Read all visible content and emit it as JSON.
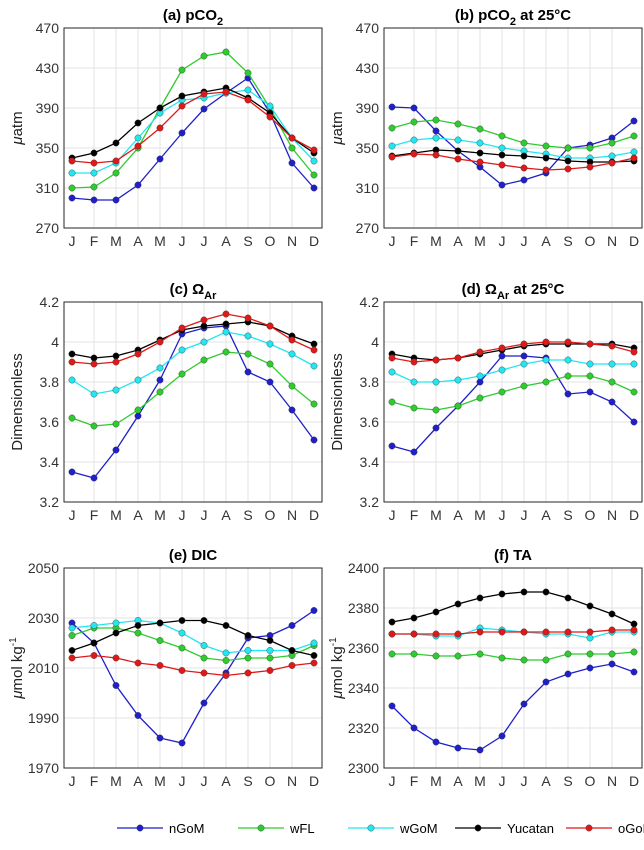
{
  "legend": {
    "items": [
      {
        "name": "nGoM",
        "color": "#1f1fcc"
      },
      {
        "name": "wFL",
        "color": "#2ecc2e"
      },
      {
        "name": "wGoM",
        "color": "#22e6f0"
      },
      {
        "name": "Yucatan",
        "color": "#000000"
      },
      {
        "name": "oGoM",
        "color": "#e01818"
      }
    ]
  },
  "chart_data": [
    {
      "type": "line",
      "title_main": "(a) pCO",
      "title_sub": "2",
      "title_after": "",
      "ylabel_prefix": "μ",
      "ylabel_main": "atm",
      "ylabel_sup": "",
      "categories": [
        "J",
        "F",
        "M",
        "A",
        "M",
        "J",
        "J",
        "A",
        "S",
        "O",
        "N",
        "D"
      ],
      "ylim": [
        270,
        470
      ],
      "yticks": [
        270,
        310,
        350,
        390,
        430,
        470
      ],
      "ytick_labels": [
        "270",
        "310",
        "350",
        "390",
        "430",
        "470"
      ],
      "grid": true,
      "series": [
        {
          "name": "nGoM",
          "values": [
            300,
            298,
            298,
            313,
            339,
            365,
            389,
            405,
            420,
            385,
            335,
            310
          ]
        },
        {
          "name": "wFL",
          "values": [
            310,
            311,
            325,
            350,
            390,
            428,
            442,
            446,
            425,
            390,
            350,
            323
          ]
        },
        {
          "name": "wGoM",
          "values": [
            325,
            325,
            335,
            360,
            385,
            398,
            400,
            405,
            408,
            392,
            360,
            337
          ]
        },
        {
          "name": "Yucatan",
          "values": [
            340,
            345,
            355,
            375,
            390,
            402,
            406,
            410,
            400,
            385,
            360,
            345
          ]
        },
        {
          "name": "oGoM",
          "values": [
            337,
            335,
            337,
            352,
            370,
            392,
            404,
            406,
            398,
            381,
            360,
            348
          ]
        }
      ]
    },
    {
      "type": "line",
      "title_main": "(b) pCO",
      "title_sub": "2",
      "title_after": " at 25°C",
      "ylabel_prefix": "μ",
      "ylabel_main": "atm",
      "ylabel_sup": "",
      "categories": [
        "J",
        "F",
        "M",
        "A",
        "M",
        "J",
        "J",
        "A",
        "S",
        "O",
        "N",
        "D"
      ],
      "ylim": [
        270,
        470
      ],
      "yticks": [
        270,
        310,
        350,
        390,
        430,
        470
      ],
      "ytick_labels": [
        "270",
        "310",
        "350",
        "390",
        "430",
        "470"
      ],
      "grid": true,
      "series": [
        {
          "name": "nGoM",
          "values": [
            391,
            390,
            367,
            347,
            331,
            313,
            318,
            325,
            350,
            353,
            360,
            377
          ]
        },
        {
          "name": "wFL",
          "values": [
            370,
            376,
            378,
            374,
            369,
            362,
            355,
            352,
            350,
            350,
            355,
            362
          ]
        },
        {
          "name": "wGoM",
          "values": [
            352,
            358,
            360,
            358,
            355,
            350,
            347,
            344,
            340,
            340,
            342,
            346
          ]
        },
        {
          "name": "Yucatan",
          "values": [
            342,
            345,
            348,
            347,
            345,
            343,
            342,
            340,
            337,
            336,
            336,
            337
          ]
        },
        {
          "name": "oGoM",
          "values": [
            341,
            344,
            343,
            339,
            336,
            333,
            330,
            328,
            329,
            331,
            335,
            340
          ]
        }
      ]
    },
    {
      "type": "line",
      "title_main": "(c) Ω",
      "title_sub": "Ar",
      "title_after": "",
      "ylabel_prefix": "",
      "ylabel_main": "Dimensionless",
      "ylabel_sup": "",
      "categories": [
        "J",
        "F",
        "M",
        "A",
        "M",
        "J",
        "J",
        "A",
        "S",
        "O",
        "N",
        "D"
      ],
      "ylim": [
        3.2,
        4.2
      ],
      "yticks": [
        3.2,
        3.4,
        3.6,
        3.8,
        4.0,
        4.2
      ],
      "ytick_labels": [
        "3.2",
        "3.4",
        "3.6",
        "3.8",
        "4",
        "4.2"
      ],
      "grid": true,
      "series": [
        {
          "name": "nGoM",
          "values": [
            3.35,
            3.32,
            3.46,
            3.63,
            3.81,
            4.04,
            4.07,
            4.08,
            3.85,
            3.8,
            3.66,
            3.51
          ]
        },
        {
          "name": "wFL",
          "values": [
            3.62,
            3.58,
            3.59,
            3.66,
            3.75,
            3.84,
            3.91,
            3.95,
            3.94,
            3.89,
            3.78,
            3.69
          ]
        },
        {
          "name": "wGoM",
          "values": [
            3.81,
            3.74,
            3.76,
            3.81,
            3.87,
            3.96,
            4.0,
            4.05,
            4.03,
            3.99,
            3.94,
            3.88
          ]
        },
        {
          "name": "Yucatan",
          "values": [
            3.94,
            3.92,
            3.93,
            3.96,
            4.01,
            4.06,
            4.08,
            4.09,
            4.1,
            4.08,
            4.03,
            3.99
          ]
        },
        {
          "name": "oGoM",
          "values": [
            3.9,
            3.89,
            3.9,
            3.94,
            4.0,
            4.07,
            4.11,
            4.14,
            4.12,
            4.08,
            4.01,
            3.96
          ]
        }
      ]
    },
    {
      "type": "line",
      "title_main": "(d) Ω",
      "title_sub": "Ar",
      "title_after": " at 25°C",
      "ylabel_prefix": "",
      "ylabel_main": "Dimensionless",
      "ylabel_sup": "",
      "categories": [
        "J",
        "F",
        "M",
        "A",
        "M",
        "J",
        "J",
        "A",
        "S",
        "O",
        "N",
        "D"
      ],
      "ylim": [
        3.2,
        4.2
      ],
      "yticks": [
        3.2,
        3.4,
        3.6,
        3.8,
        4.0,
        4.2
      ],
      "ytick_labels": [
        "3.2",
        "3.4",
        "3.6",
        "3.8",
        "4",
        "4.2"
      ],
      "grid": true,
      "series": [
        {
          "name": "nGoM",
          "values": [
            3.48,
            3.45,
            3.57,
            3.68,
            3.8,
            3.93,
            3.93,
            3.92,
            3.74,
            3.75,
            3.7,
            3.6
          ]
        },
        {
          "name": "wFL",
          "values": [
            3.7,
            3.67,
            3.66,
            3.68,
            3.72,
            3.75,
            3.78,
            3.8,
            3.83,
            3.83,
            3.8,
            3.75
          ]
        },
        {
          "name": "wGoM",
          "values": [
            3.85,
            3.8,
            3.8,
            3.81,
            3.83,
            3.86,
            3.89,
            3.91,
            3.91,
            3.89,
            3.89,
            3.89
          ]
        },
        {
          "name": "Yucatan",
          "values": [
            3.94,
            3.92,
            3.91,
            3.92,
            3.94,
            3.96,
            3.98,
            3.99,
            3.99,
            3.99,
            3.99,
            3.97
          ]
        },
        {
          "name": "oGoM",
          "values": [
            3.92,
            3.9,
            3.91,
            3.92,
            3.95,
            3.97,
            3.99,
            4.0,
            4.0,
            3.99,
            3.98,
            3.95
          ]
        }
      ]
    },
    {
      "type": "line",
      "title_main": "(e) DIC",
      "title_sub": "",
      "title_after": "",
      "ylabel_prefix": "μ",
      "ylabel_main": "mol kg",
      "ylabel_sup": "-1",
      "categories": [
        "J",
        "F",
        "M",
        "A",
        "M",
        "J",
        "J",
        "A",
        "S",
        "O",
        "N",
        "D"
      ],
      "ylim": [
        1970,
        2050
      ],
      "yticks": [
        1970,
        1990,
        2010,
        2030,
        2050
      ],
      "ytick_labels": [
        "1970",
        "1990",
        "2010",
        "2030",
        "2050"
      ],
      "grid": true,
      "series": [
        {
          "name": "nGoM",
          "values": [
            2028,
            2020,
            2003,
            1991,
            1982,
            1980,
            1996,
            2008,
            2022,
            2023,
            2027,
            2033
          ]
        },
        {
          "name": "wFL",
          "values": [
            2023,
            2026,
            2026,
            2024,
            2021,
            2018,
            2014,
            2013,
            2014,
            2014,
            2015,
            2019
          ]
        },
        {
          "name": "wGoM",
          "values": [
            2026,
            2027,
            2028,
            2029,
            2028,
            2024,
            2019,
            2016,
            2017,
            2017,
            2017,
            2020
          ]
        },
        {
          "name": "Yucatan",
          "values": [
            2017,
            2020,
            2024,
            2027,
            2028,
            2029,
            2029,
            2027,
            2023,
            2021,
            2017,
            2015
          ]
        },
        {
          "name": "oGoM",
          "values": [
            2014,
            2015,
            2014,
            2012,
            2011,
            2009,
            2008,
            2007,
            2008,
            2009,
            2011,
            2012
          ]
        }
      ]
    },
    {
      "type": "line",
      "title_main": "(f) TA",
      "title_sub": "",
      "title_after": "",
      "ylabel_prefix": "μ",
      "ylabel_main": "mol kg",
      "ylabel_sup": "-1",
      "categories": [
        "J",
        "F",
        "M",
        "A",
        "M",
        "J",
        "J",
        "A",
        "S",
        "O",
        "N",
        "D"
      ],
      "ylim": [
        2300,
        2400
      ],
      "yticks": [
        2300,
        2320,
        2340,
        2360,
        2380,
        2400
      ],
      "ytick_labels": [
        "2300",
        "2320",
        "2340",
        "2360",
        "2380",
        "2400"
      ],
      "grid": true,
      "series": [
        {
          "name": "nGoM",
          "values": [
            2331,
            2320,
            2313,
            2310,
            2309,
            2316,
            2332,
            2343,
            2347,
            2350,
            2352,
            2348
          ]
        },
        {
          "name": "wFL",
          "values": [
            2357,
            2357,
            2356,
            2356,
            2357,
            2355,
            2354,
            2354,
            2357,
            2357,
            2357,
            2358
          ]
        },
        {
          "name": "wGoM",
          "values": [
            2367,
            2367,
            2366,
            2366,
            2370,
            2369,
            2368,
            2367,
            2367,
            2365,
            2368,
            2368
          ]
        },
        {
          "name": "Yucatan",
          "values": [
            2373,
            2375,
            2378,
            2382,
            2385,
            2387,
            2388,
            2388,
            2385,
            2381,
            2377,
            2372
          ]
        },
        {
          "name": "oGoM",
          "values": [
            2367,
            2367,
            2367,
            2367,
            2368,
            2368,
            2368,
            2368,
            2368,
            2368,
            2369,
            2369
          ]
        }
      ]
    }
  ]
}
